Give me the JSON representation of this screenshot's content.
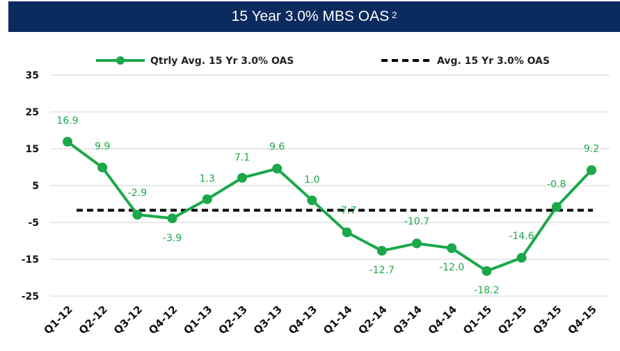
{
  "header": {
    "title": "15 Year 3.0% MBS OAS",
    "superscript": "2"
  },
  "legend": {
    "series_label": "Qtrly Avg. 15 Yr 3.0% OAS",
    "avg_label": "Avg. 15 Yr 3.0% OAS"
  },
  "colors": {
    "series": "#1aa84a",
    "average": "#000000",
    "header_bg": "#0b2a5e",
    "grid": "#d0d0d0"
  },
  "chart_data": {
    "type": "line",
    "title": "15 Year 3.0% MBS OAS",
    "categories": [
      "Q1-12",
      "Q2-12",
      "Q3-12",
      "Q4-12",
      "Q1-13",
      "Q2-13",
      "Q3-13",
      "Q4-13",
      "Q1-14",
      "Q2-14",
      "Q3-14",
      "Q4-14",
      "Q1-15",
      "Q2-15",
      "Q3-15",
      "Q4-15"
    ],
    "series": [
      {
        "name": "Qtrly Avg. 15 Yr 3.0% OAS",
        "values": [
          16.9,
          9.9,
          -2.9,
          -3.9,
          1.3,
          7.1,
          9.6,
          1.0,
          -7.7,
          -12.7,
          -10.7,
          -12.0,
          -18.2,
          -14.6,
          -0.8,
          9.2
        ]
      },
      {
        "name": "Avg. 15 Yr 3.0% OAS",
        "values": [
          -1.7,
          -1.7,
          -1.7,
          -1.7,
          -1.7,
          -1.7,
          -1.7,
          -1.7,
          -1.7,
          -1.7,
          -1.7,
          -1.7,
          -1.7,
          -1.7,
          -1.7,
          -1.7
        ]
      }
    ],
    "data_labels": [
      "16.9",
      "9.9",
      "-2.9",
      "-3.9",
      "1.3",
      "7.1",
      "9.6",
      "1.0",
      "-7.7",
      "-12.7",
      "-10.7",
      "-12.0",
      "-18.2",
      "-14.6",
      "-0.8",
      "9.2"
    ],
    "yticks": [
      35,
      25,
      15,
      5,
      -5,
      -15,
      -25
    ],
    "ylim": [
      -25,
      35
    ],
    "grid": true,
    "legend_position": "top"
  }
}
